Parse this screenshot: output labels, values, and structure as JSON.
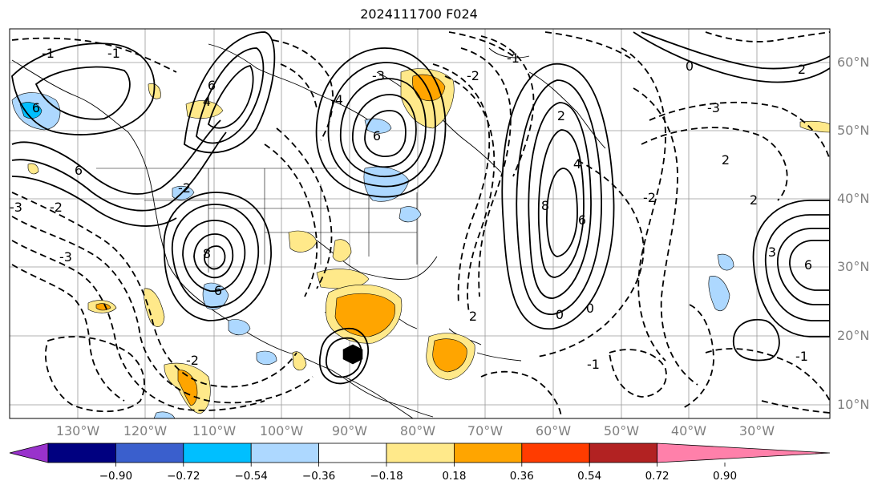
{
  "title": "2024111700 F024",
  "lon_labels": [
    "130°W",
    "120°W",
    "110°W",
    "100°W",
    "90°W",
    "80°W",
    "70°W",
    "60°W",
    "50°W",
    "40°W",
    "30°W"
  ],
  "lat_labels": [
    "60°N",
    "50°N",
    "40°N",
    "30°N",
    "20°N",
    "10°N"
  ],
  "colorbar": {
    "ticks": [
      "−0.90",
      "−0.72",
      "−0.54",
      "−0.36",
      "−0.18",
      "0.18",
      "0.36",
      "0.54",
      "0.72",
      "0.90"
    ],
    "colors": [
      "#9932cc",
      "#000080",
      "#3a5fcd",
      "#00bfff",
      "#add8ff",
      "#ffffff",
      "#ffe98a",
      "#ffa500",
      "#ff3c00",
      "#b22222",
      "#ff80aa"
    ]
  },
  "contour_labels": {
    "pos": [
      "6",
      "4",
      "6",
      "8",
      "6",
      "6",
      "8",
      "6",
      "4",
      "6",
      "6",
      "2",
      "2",
      "2",
      "3"
    ],
    "neg": [
      "-1",
      "-2",
      "-3",
      "-1",
      "-2",
      "-3",
      "-2",
      "-4",
      "-3",
      "-2",
      "-1",
      "0",
      "0",
      "-1",
      "2",
      "-2",
      "-3",
      "-1",
      "2",
      "0"
    ]
  }
}
